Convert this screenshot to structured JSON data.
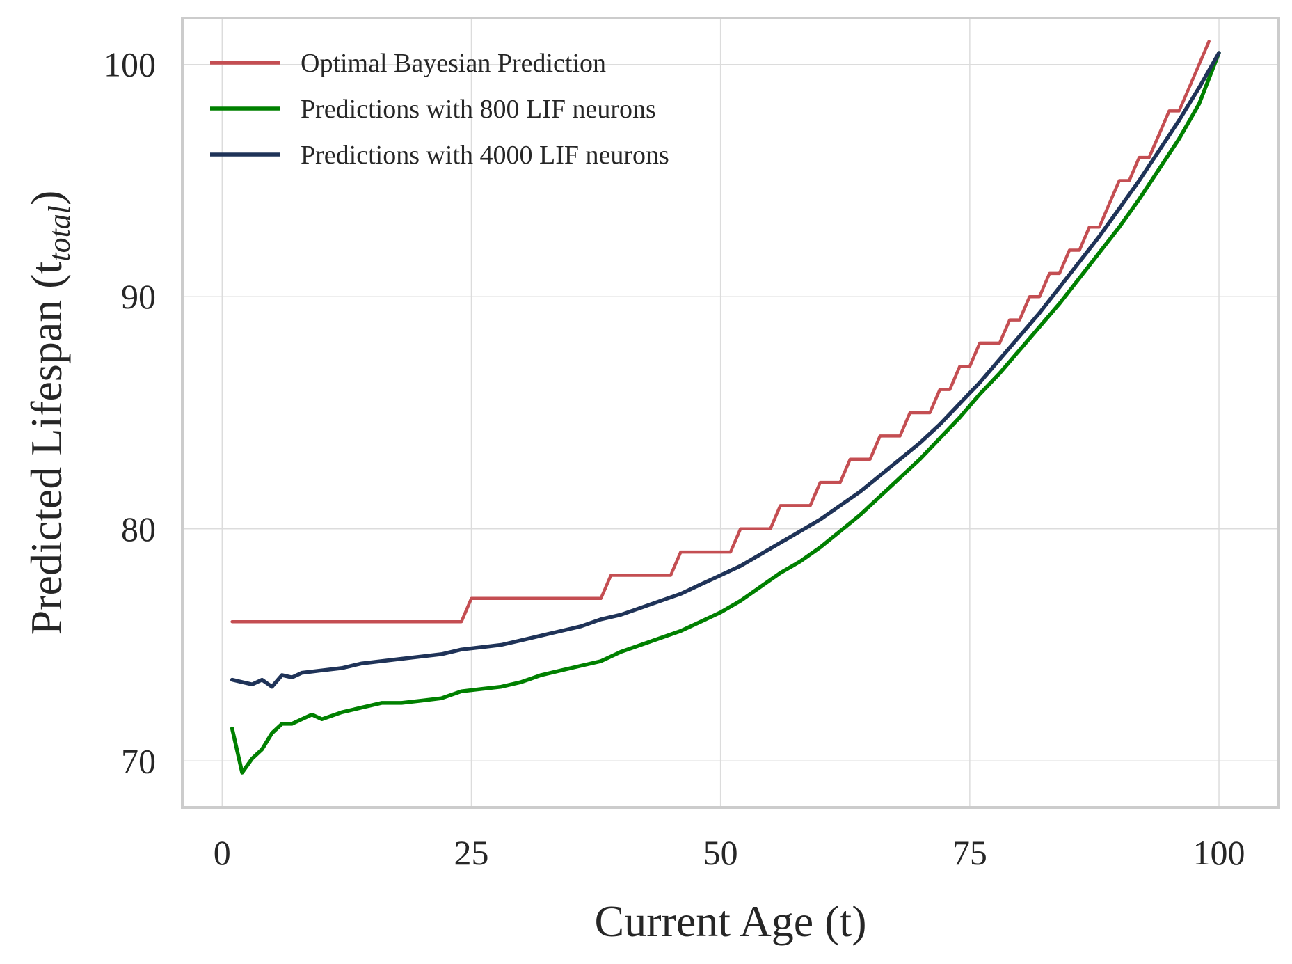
{
  "chart_data": {
    "type": "line",
    "title": "",
    "xlabel": "Current Age (t)",
    "ylabel": "Predicted Lifespan (t",
    "ylabel_sub": "total",
    "ylabel_close": ")",
    "xlim": [
      -4,
      106
    ],
    "ylim": [
      68,
      102
    ],
    "xticks": [
      0,
      25,
      50,
      75,
      100
    ],
    "xtick_labels": [
      "0",
      "25",
      "50",
      "75",
      "100"
    ],
    "yticks": [
      70,
      80,
      90,
      100
    ],
    "ytick_labels": [
      "70",
      "80",
      "90",
      "100"
    ],
    "grid": true,
    "legend_position": "top-left",
    "series": [
      {
        "name": "Optimal Bayesian Prediction",
        "color": "#c44e52",
        "x": [
          1,
          24,
          25,
          38,
          39,
          45,
          46,
          51,
          52,
          55,
          56,
          59,
          60,
          62,
          63,
          65,
          66,
          68,
          69,
          71,
          72,
          73,
          74,
          75,
          76,
          77,
          78,
          79,
          80,
          81,
          82,
          83,
          84,
          85,
          86,
          87,
          88,
          89,
          90,
          91,
          92,
          93,
          94,
          95,
          96,
          97,
          98,
          99
        ],
        "y": [
          76,
          76,
          77,
          77,
          78,
          78,
          79,
          79,
          80,
          80,
          81,
          81,
          82,
          82,
          83,
          83,
          84,
          84,
          85,
          85,
          86,
          86,
          87,
          87,
          88,
          88,
          88,
          89,
          89,
          90,
          90,
          91,
          91,
          92,
          92,
          93,
          93,
          94,
          95,
          95,
          96,
          96,
          97,
          98,
          98,
          99,
          100,
          101
        ]
      },
      {
        "name": "Predictions with 800 LIF neurons",
        "color": "#008000",
        "x": [
          1,
          2,
          3,
          4,
          5,
          6,
          7,
          8,
          9,
          10,
          12,
          14,
          16,
          18,
          20,
          22,
          24,
          26,
          28,
          30,
          32,
          34,
          36,
          38,
          40,
          42,
          44,
          46,
          48,
          50,
          52,
          54,
          56,
          58,
          60,
          62,
          64,
          66,
          68,
          70,
          72,
          74,
          76,
          78,
          80,
          82,
          84,
          86,
          88,
          90,
          92,
          94,
          96,
          98,
          100
        ],
        "y": [
          71.4,
          69.5,
          70.1,
          70.5,
          71.2,
          71.6,
          71.6,
          71.8,
          72.0,
          71.8,
          72.1,
          72.3,
          72.5,
          72.5,
          72.6,
          72.7,
          73.0,
          73.1,
          73.2,
          73.4,
          73.7,
          73.9,
          74.1,
          74.3,
          74.7,
          75.0,
          75.3,
          75.6,
          76.0,
          76.4,
          76.9,
          77.5,
          78.1,
          78.6,
          79.2,
          79.9,
          80.6,
          81.4,
          82.2,
          83.0,
          83.9,
          84.8,
          85.8,
          86.7,
          87.7,
          88.7,
          89.7,
          90.8,
          91.9,
          93.0,
          94.2,
          95.5,
          96.8,
          98.3,
          100.5
        ]
      },
      {
        "name": "Predictions with 4000 LIF neurons",
        "color": "#1f3358",
        "x": [
          1,
          2,
          3,
          4,
          5,
          6,
          7,
          8,
          10,
          12,
          14,
          16,
          18,
          20,
          22,
          24,
          26,
          28,
          30,
          32,
          34,
          36,
          38,
          40,
          42,
          44,
          46,
          48,
          50,
          52,
          54,
          56,
          58,
          60,
          62,
          64,
          66,
          68,
          70,
          72,
          74,
          76,
          78,
          80,
          82,
          84,
          86,
          88,
          90,
          92,
          94,
          96,
          98,
          100
        ],
        "y": [
          73.5,
          73.4,
          73.3,
          73.5,
          73.2,
          73.7,
          73.6,
          73.8,
          73.9,
          74.0,
          74.2,
          74.3,
          74.4,
          74.5,
          74.6,
          74.8,
          74.9,
          75.0,
          75.2,
          75.4,
          75.6,
          75.8,
          76.1,
          76.3,
          76.6,
          76.9,
          77.2,
          77.6,
          78.0,
          78.4,
          78.9,
          79.4,
          79.9,
          80.4,
          81.0,
          81.6,
          82.3,
          83.0,
          83.7,
          84.5,
          85.4,
          86.3,
          87.3,
          88.3,
          89.3,
          90.4,
          91.5,
          92.6,
          93.8,
          95.0,
          96.3,
          97.6,
          99.0,
          100.5
        ]
      }
    ]
  }
}
